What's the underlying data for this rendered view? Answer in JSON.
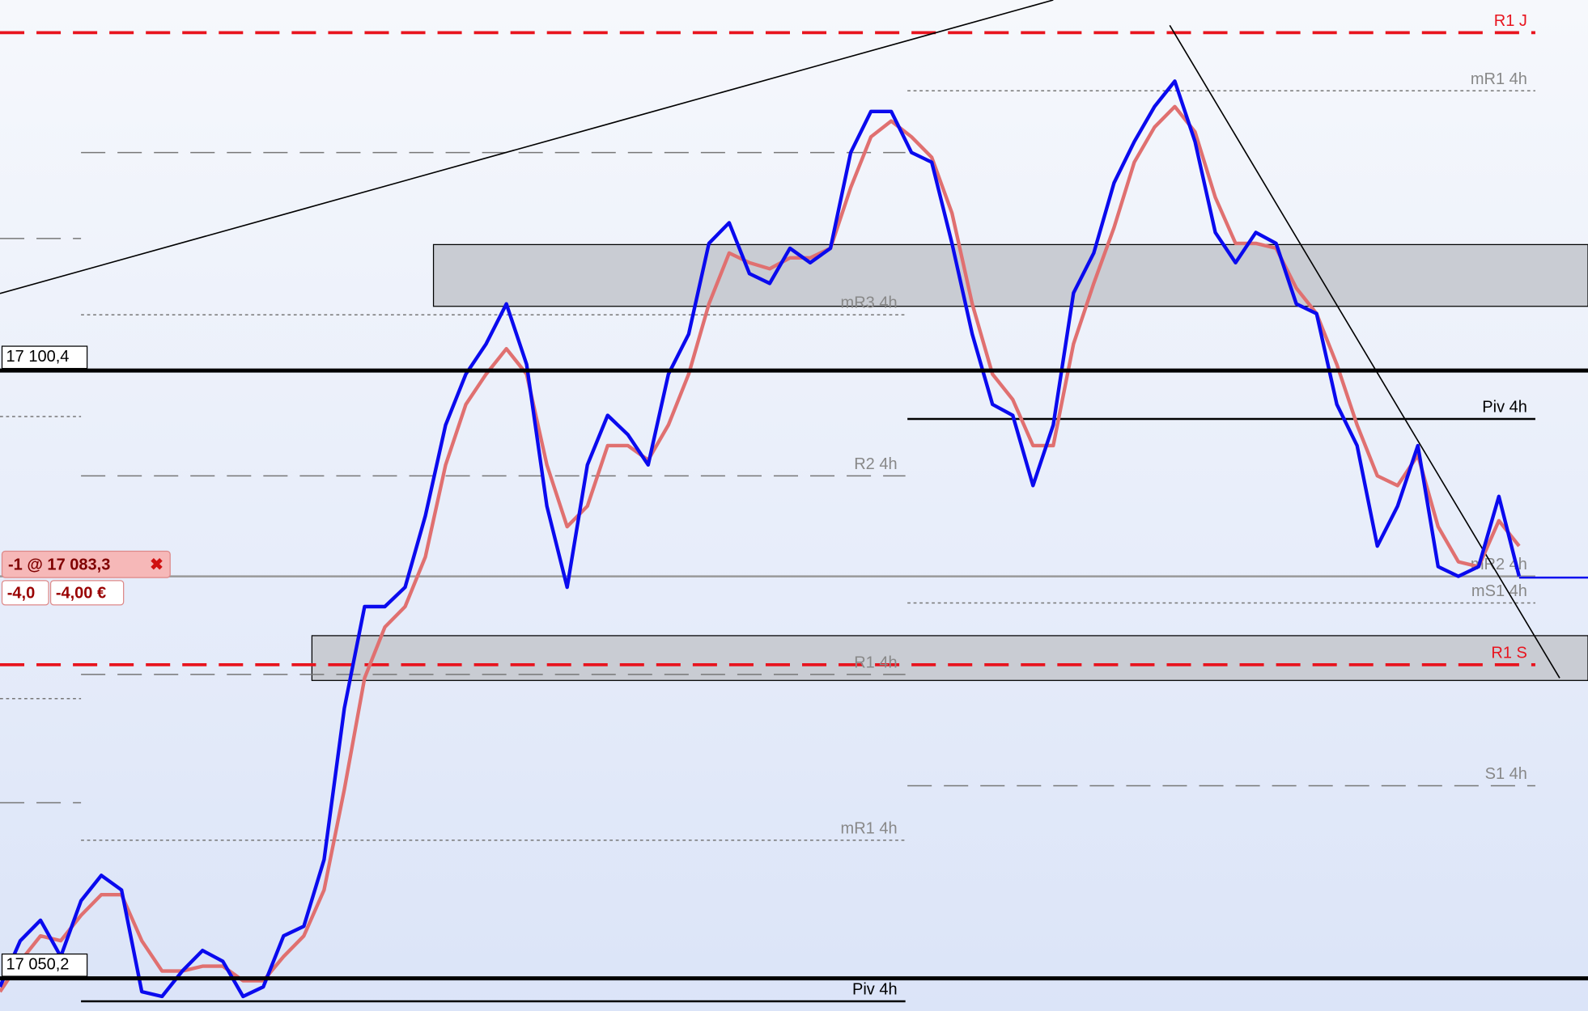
{
  "chart_data": {
    "type": "line",
    "x": [
      0,
      1,
      2,
      3,
      4,
      5,
      6,
      7,
      8,
      9,
      10,
      11,
      12,
      13,
      14,
      15,
      16,
      17,
      18,
      19,
      20,
      21,
      22,
      23,
      24,
      25,
      26,
      27,
      28,
      29,
      30,
      31,
      32,
      33,
      34,
      35,
      36,
      37,
      38,
      39,
      40,
      41,
      42,
      43,
      44,
      45,
      46,
      47,
      48,
      49,
      50,
      51,
      52,
      53,
      54,
      55,
      56,
      57,
      58,
      59,
      60,
      61,
      62,
      63,
      64,
      65,
      66,
      67,
      68,
      69,
      70,
      71,
      72,
      73,
      74,
      75
    ],
    "xlim": [
      0,
      78.4
    ],
    "ylim": [
      17047.5,
      17131.0
    ],
    "series": [
      {
        "color": "#0a0aee",
        "values": [
          17049.5,
          17053.3,
          17055.0,
          17052.0,
          17056.6,
          17058.7,
          17057.5,
          17049.1,
          17048.7,
          17050.8,
          17052.5,
          17051.6,
          17048.7,
          17049.5,
          17053.7,
          17054.5,
          17060.0,
          17072.5,
          17080.9,
          17080.9,
          17082.5,
          17088.4,
          17095.9,
          17100.1,
          17102.6,
          17105.9,
          17100.9,
          17089.2,
          17082.5,
          17092.6,
          17096.7,
          17095.1,
          17092.6,
          17100.1,
          17103.4,
          17110.9,
          17112.6,
          17108.4,
          17107.6,
          17110.5,
          17109.3,
          17110.5,
          17118.4,
          17121.8,
          17121.8,
          17118.4,
          17117.6,
          17110.9,
          17103.4,
          17097.6,
          17096.7,
          17090.9,
          17095.9,
          17106.8,
          17110.1,
          17115.9,
          17119.3,
          17122.2,
          17124.3,
          17119.3,
          17111.8,
          17109.3,
          17111.8,
          17110.9,
          17105.9,
          17105.1,
          17097.6,
          17094.2,
          17085.9,
          17089.2,
          17094.2,
          17084.2,
          17083.4,
          17084.2,
          17090.0,
          17083.4
        ]
      },
      {
        "color": "#e07070",
        "values": [
          17049.1,
          17051.6,
          17053.7,
          17053.3,
          17055.4,
          17057.1,
          17057.1,
          17053.3,
          17050.8,
          17050.8,
          17051.2,
          17051.2,
          17050.0,
          17050.0,
          17052.0,
          17053.7,
          17057.5,
          17065.8,
          17075.0,
          17079.2,
          17080.9,
          17085.0,
          17092.6,
          17097.6,
          17100.1,
          17102.2,
          17100.1,
          17092.6,
          17087.5,
          17089.2,
          17094.2,
          17094.2,
          17093.0,
          17095.9,
          17100.1,
          17105.9,
          17110.1,
          17109.3,
          17108.8,
          17109.7,
          17109.7,
          17110.5,
          17115.5,
          17119.7,
          17121.0,
          17119.7,
          17118.0,
          17113.4,
          17105.9,
          17100.1,
          17098.0,
          17094.2,
          17094.2,
          17102.6,
          17107.6,
          17112.2,
          17117.6,
          17120.5,
          17122.2,
          17120.1,
          17114.7,
          17110.9,
          17110.9,
          17110.5,
          17107.2,
          17105.1,
          17100.9,
          17095.9,
          17091.7,
          17090.9,
          17093.4,
          17087.5,
          17084.6,
          17084.2,
          17088.0,
          17085.9
        ]
      }
    ],
    "zones": [
      {
        "from": 17105.7,
        "to": 17110.8,
        "xrange": [
          21.4,
          78.4
        ],
        "color": "#c9ccd3"
      },
      {
        "from": 17074.8,
        "to": 17078.5,
        "xrange": [
          15.4,
          78.4
        ],
        "color": "#c9ccd3"
      }
    ],
    "levels": [
      {
        "label": "R1 J",
        "value": 17128.3,
        "color": "#e8141e",
        "style": "dashed",
        "xrange": [
          0,
          75.8
        ]
      },
      {
        "label": "mR1 4h",
        "value": 17123.5,
        "color": "#777777",
        "style": "dotted",
        "xrange": [
          44.8,
          75.8
        ]
      },
      {
        "value": 17118.4,
        "color": "#777777",
        "style": "dashed",
        "xrange": [
          4,
          44.7
        ]
      },
      {
        "label": "mR3 4h",
        "value": 17105.0,
        "color": "#777777",
        "style": "dotted",
        "xrange": [
          4,
          44.7
        ]
      },
      {
        "label": "Piv 4h",
        "value": 17096.4,
        "color": "#000000",
        "style": "solid",
        "xrange": [
          44.8,
          75.8
        ]
      },
      {
        "label": "R2 4h",
        "value": 17091.7,
        "color": "#777777",
        "style": "dashed",
        "xrange": [
          4,
          44.7
        ]
      },
      {
        "label": "mR2 4h",
        "value": 17083.4,
        "color": "#999999",
        "style": "solid",
        "xrange": [
          0,
          75.8
        ]
      },
      {
        "label": "mS1 4h",
        "value": 17081.2,
        "color": "#777777",
        "style": "dotted",
        "xrange": [
          44.8,
          75.8
        ]
      },
      {
        "label": "R1 S",
        "value": 17076.1,
        "color": "#e8141e",
        "style": "dashed",
        "xrange": [
          0,
          75.8
        ]
      },
      {
        "label": "R1 4h",
        "value": 17075.3,
        "color": "#777777",
        "style": "dashed",
        "xrange": [
          4,
          44.7
        ]
      },
      {
        "label": "S1 4h",
        "value": 17066.1,
        "color": "#777777",
        "style": "dashed",
        "xrange": [
          44.8,
          75.8
        ]
      },
      {
        "label": "mR1 4h",
        "value": 17061.6,
        "color": "#777777",
        "style": "dotted",
        "xrange": [
          4,
          44.7
        ]
      },
      {
        "label": "Piv 4h",
        "value": 17048.3,
        "color": "#000000",
        "style": "solid",
        "xrange": [
          4,
          44.7
        ]
      },
      {
        "value": 17111.3,
        "color": "#777777",
        "style": "dashed",
        "xrange": [
          0,
          4
        ]
      },
      {
        "value": 17096.6,
        "color": "#777777",
        "style": "dotted",
        "xrange": [
          0,
          4
        ]
      },
      {
        "value": 17073.3,
        "color": "#777777",
        "style": "dotted",
        "xrange": [
          0,
          4
        ]
      },
      {
        "value": 17064.7,
        "color": "#777777",
        "style": "dashed",
        "xrange": [
          0,
          4
        ]
      }
    ],
    "price_lines": [
      {
        "value": 17100.4,
        "label": "17 100,4"
      },
      {
        "value": 17050.2,
        "label": "17 050,2"
      }
    ],
    "order": {
      "value": 17083.3,
      "label": "-1 @ 17 083,3",
      "points": "-4,0",
      "pnl": "-4,00 €",
      "color": "#0a0aee"
    }
  }
}
